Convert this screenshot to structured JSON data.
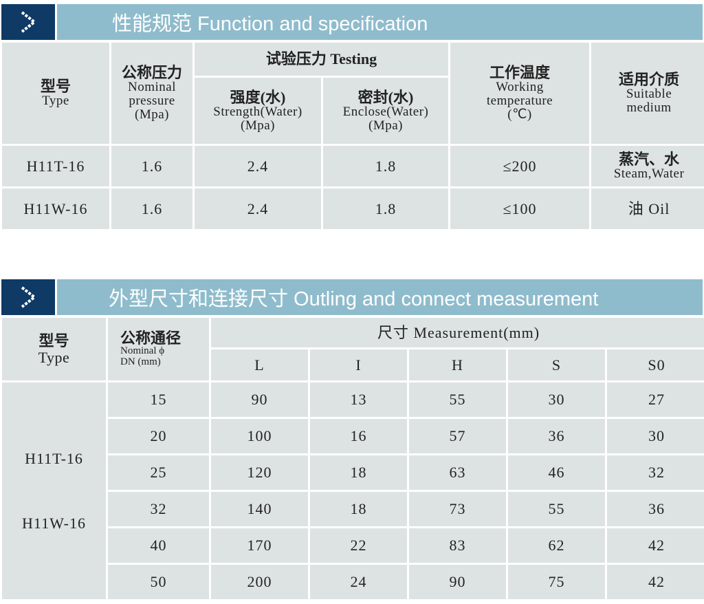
{
  "section1": {
    "icon": "chevron-right-icon",
    "title": "性能规范  Function and specification",
    "headers": {
      "type_zh": "型号",
      "type_en": "Type",
      "pressure_zh": "公称压力",
      "pressure_en1": "Nominal",
      "pressure_en2": "pressure",
      "pressure_unit": "(Mpa)",
      "testing": "试验压力 Testing",
      "strength_zh": "强度(水)",
      "strength_en": "Strength(Water)",
      "strength_unit": "(Mpa)",
      "enclose_zh": "密封(水)",
      "enclose_en": "Enclose(Water)",
      "enclose_unit": "(Mpa)",
      "temp_zh": "工作温度",
      "temp_en1": "Working",
      "temp_en2": "temperature",
      "temp_unit": "(℃)",
      "medium_zh": "适用介质",
      "medium_en1": "Suitable",
      "medium_en2": "medium"
    },
    "rows": [
      {
        "type": "H11T-16",
        "pressure": "1.6",
        "strength": "2.4",
        "enclose": "1.8",
        "temp": "≤200",
        "medium_zh": "蒸汽、水",
        "medium_en": "Steam,Water"
      },
      {
        "type": "H11W-16",
        "pressure": "1.6",
        "strength": "2.4",
        "enclose": "1.8",
        "temp": "≤100",
        "medium_zh": "油 Oil",
        "medium_en": ""
      }
    ]
  },
  "section2": {
    "icon": "chevron-right-icon",
    "title": "外型尺寸和连接尺寸  Outling and connect measurement",
    "headers": {
      "type_zh": "型号",
      "type_en": "Type",
      "dn_zh": "公称通径",
      "dn_en1": "Nominal ϕ",
      "dn_en2": "DN (mm)",
      "measurement": "尺寸 Measurement(mm)",
      "cols": [
        "L",
        "I",
        "H",
        "S",
        "S0"
      ]
    },
    "types": [
      "H11T-16",
      "H11W-16"
    ],
    "rows": [
      [
        "15",
        "90",
        "13",
        "55",
        "30",
        "27"
      ],
      [
        "20",
        "100",
        "16",
        "57",
        "36",
        "30"
      ],
      [
        "25",
        "120",
        "18",
        "63",
        "46",
        "32"
      ],
      [
        "32",
        "140",
        "18",
        "73",
        "55",
        "36"
      ],
      [
        "40",
        "170",
        "22",
        "83",
        "62",
        "42"
      ],
      [
        "50",
        "200",
        "24",
        "90",
        "75",
        "42"
      ]
    ]
  },
  "colors": {
    "banner": "#8fbccc",
    "icon_bg": "#0f3a66",
    "cell": "#dde3e2"
  }
}
